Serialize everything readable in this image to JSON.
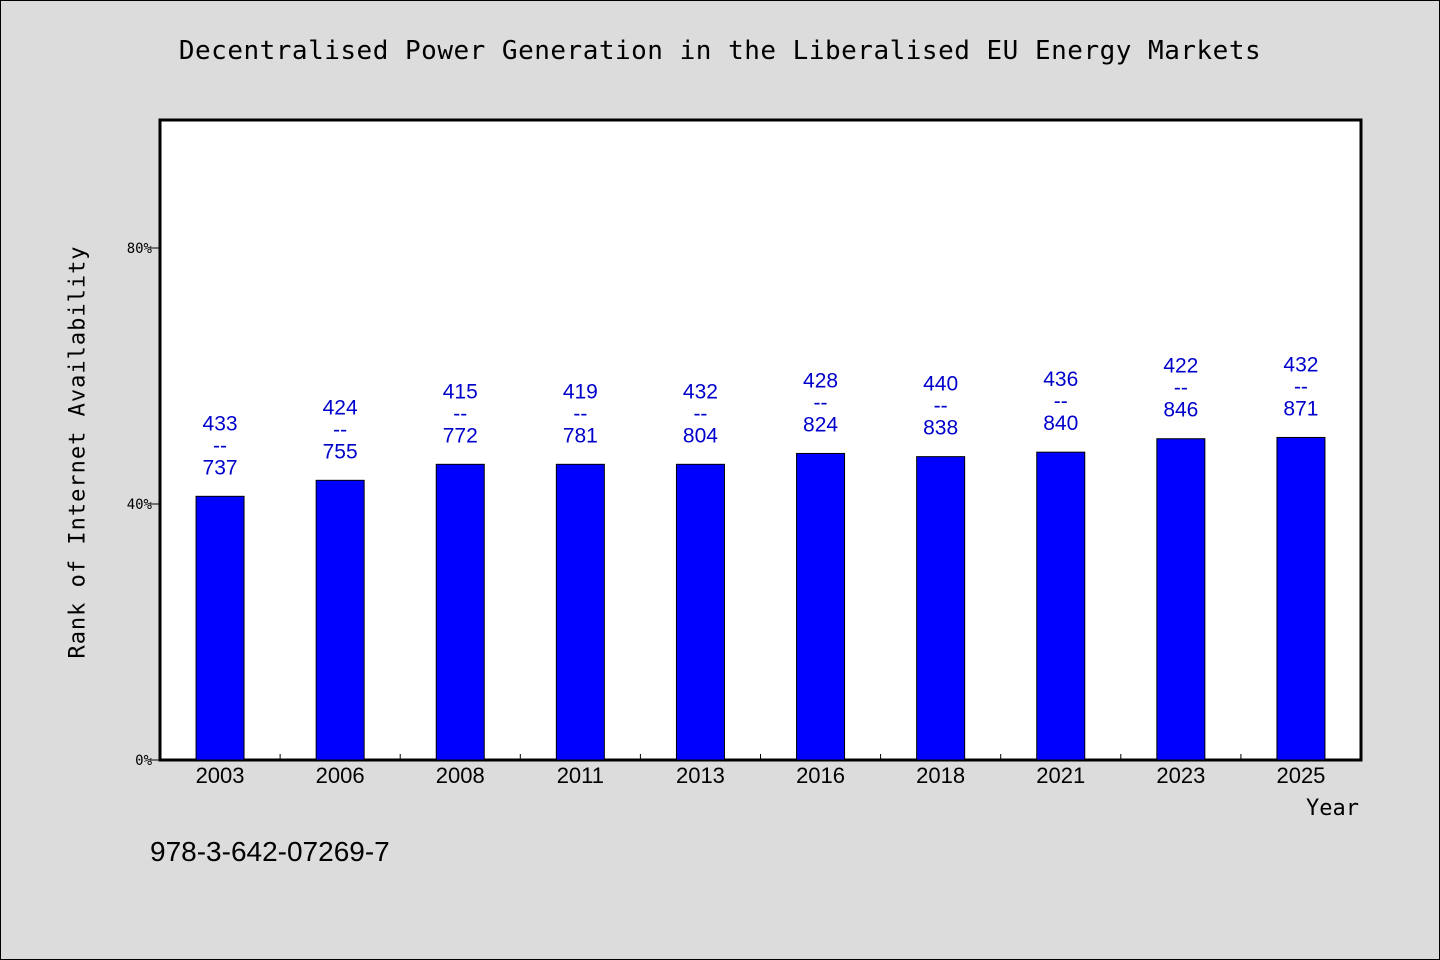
{
  "title": "Decentralised Power Generation in the Liberalised EU Energy Markets",
  "footer_text": "978-3-642-07269-7",
  "colors": {
    "bar": "#0000ff",
    "label": "#0000cc",
    "background": "#dcdcdc",
    "plot_bg": "#ffffff"
  },
  "chart_data": {
    "type": "bar",
    "title": "Decentralised Power Generation in the Liberalised EU Energy Markets",
    "xlabel": "Year",
    "ylabel": "Rank of Internet Availability",
    "categories": [
      "2003",
      "2006",
      "2008",
      "2011",
      "2013",
      "2016",
      "2018",
      "2021",
      "2023",
      "2025"
    ],
    "values": [
      41.2,
      43.7,
      46.2,
      46.2,
      46.2,
      47.9,
      47.4,
      48.1,
      50.2,
      50.4
    ],
    "top_labels": [
      "433",
      "424",
      "415",
      "419",
      "432",
      "428",
      "440",
      "436",
      "422",
      "432"
    ],
    "label_separator": "--",
    "bottom_labels": [
      "737",
      "755",
      "772",
      "781",
      "804",
      "824",
      "838",
      "840",
      "846",
      "871"
    ],
    "ylim": [
      0,
      100
    ],
    "yticks": [
      0,
      40,
      80
    ],
    "ytick_labels": [
      "0%",
      "40%",
      "80%"
    ],
    "grid": false,
    "legend": "none"
  }
}
